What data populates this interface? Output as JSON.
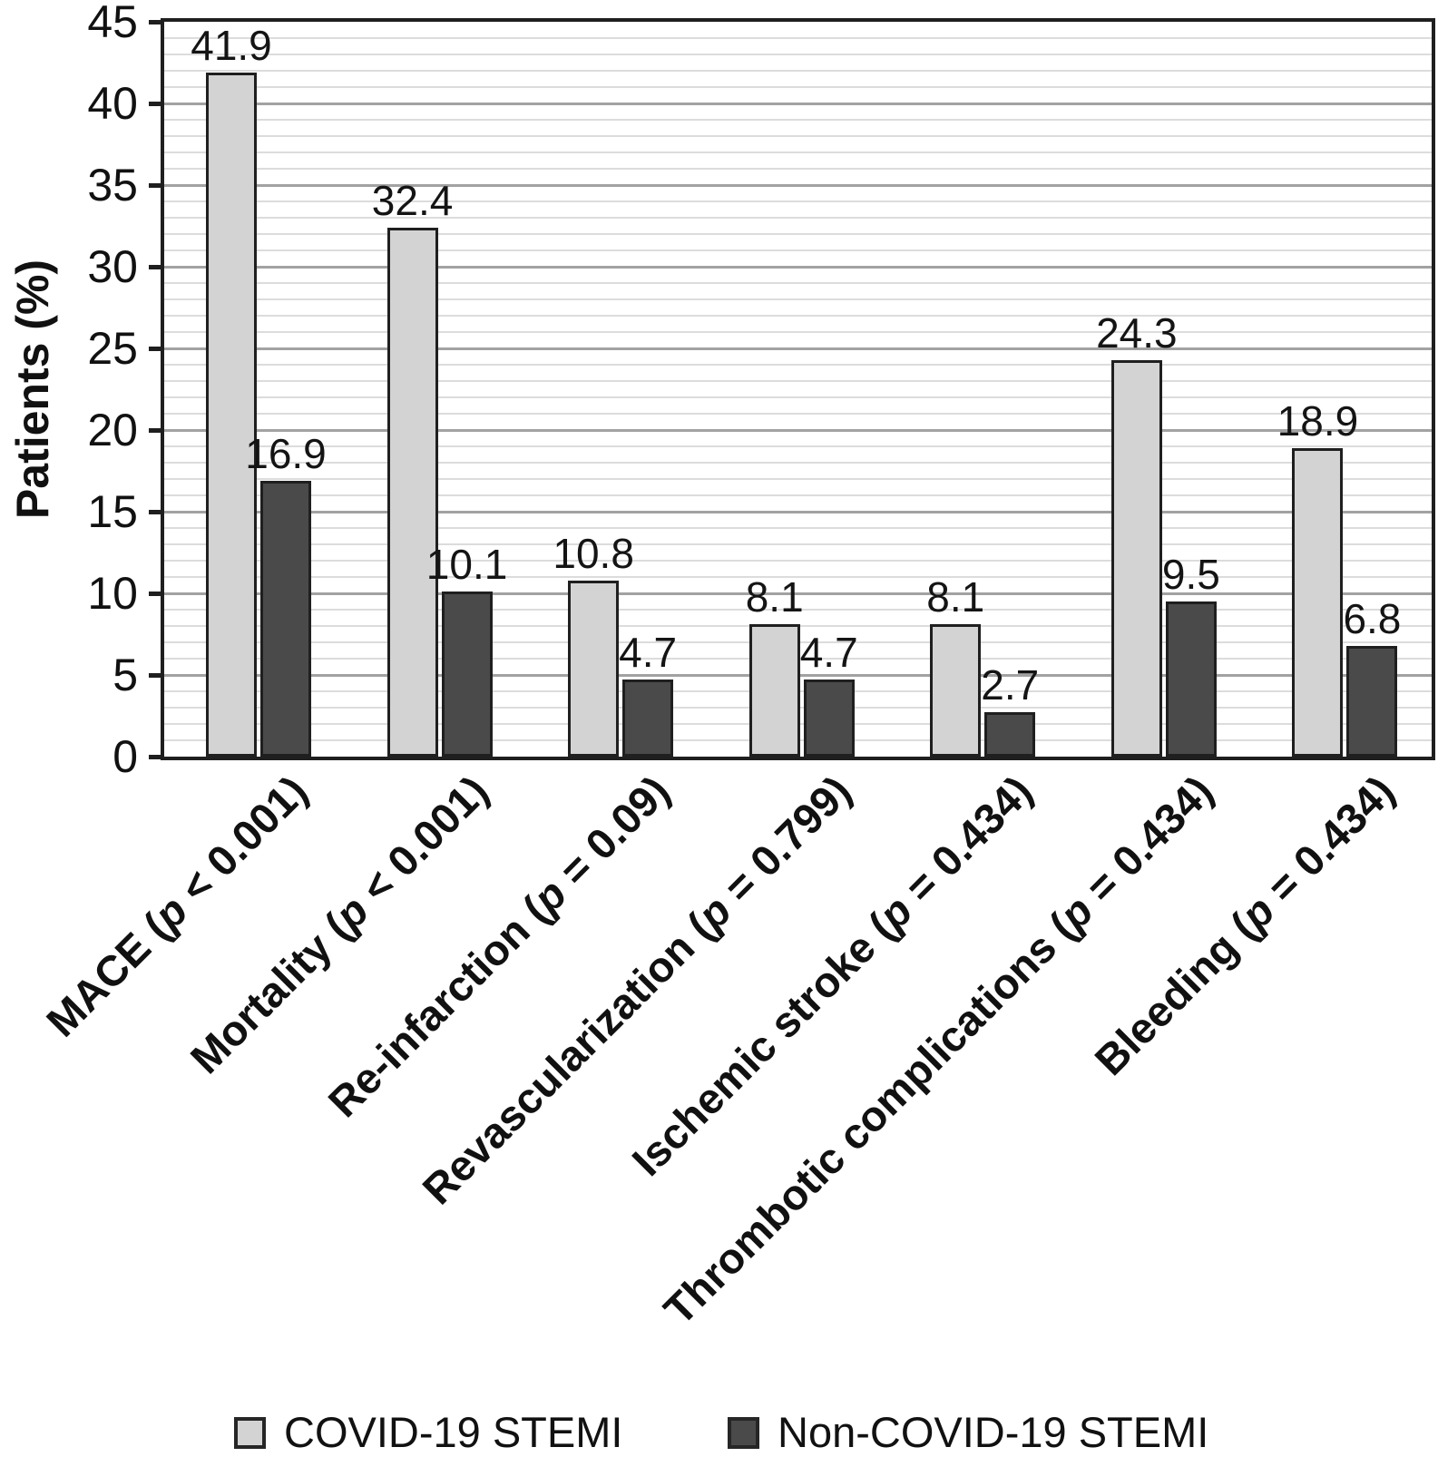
{
  "chart_data": {
    "type": "bar",
    "title": "",
    "ylabel": "Patients (%)",
    "xlabel": "",
    "ylim": [
      0,
      45
    ],
    "y_major_step": 5,
    "y_minor_step": 1,
    "y_ticks": [
      0,
      5,
      10,
      15,
      20,
      25,
      30,
      35,
      40,
      45
    ],
    "grid": "horizontal minor+major, full frame around plot",
    "legend_position": "bottom",
    "categories": [
      "MACE (p < 0.001)",
      "Mortality (p < 0.001)",
      "Re-infarction (p = 0.09)",
      "Revascularization (p = 0.799)",
      "Ischemic stroke (p = 0.434)",
      "Thrombotic complications (p = 0.434)",
      "Bleeding (p = 0.434)"
    ],
    "series": [
      {
        "name": "COVID-19 STEMI",
        "color": "#d3d3d3",
        "values": [
          41.9,
          32.4,
          10.8,
          8.1,
          8.1,
          24.3,
          18.9
        ]
      },
      {
        "name": "Non-COVID-19 STEMI",
        "color": "#4a4a4a",
        "values": [
          16.9,
          10.1,
          4.7,
          4.7,
          2.7,
          9.5,
          6.8
        ]
      }
    ]
  },
  "colors": {
    "bar_border": "#1f1f1f",
    "frame": "#1f1f1f",
    "gridline_minor": "#dcdcdc",
    "gridline_major": "#a2a2a2",
    "text": "#111111",
    "background": "#ffffff"
  }
}
